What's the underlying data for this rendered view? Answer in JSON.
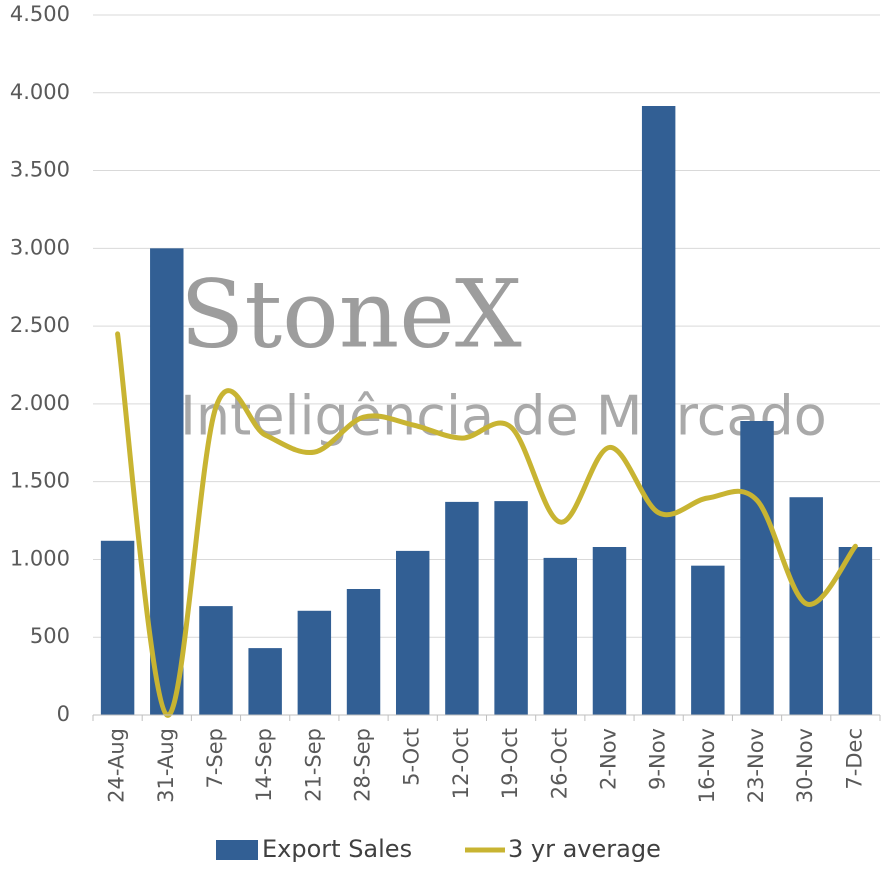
{
  "chart_data": {
    "type": "bar-line",
    "watermark": {
      "brand": "StoneX",
      "tagline": "Inteligência de Mercado"
    },
    "categories": [
      "24-Aug",
      "31-Aug",
      "7-Sep",
      "14-Sep",
      "21-Sep",
      "28-Sep",
      "5-Oct",
      "12-Oct",
      "19-Oct",
      "26-Oct",
      "2-Nov",
      "9-Nov",
      "16-Nov",
      "23-Nov",
      "30-Nov",
      "7-Dec"
    ],
    "series": [
      {
        "name": "Export Sales",
        "type": "bar",
        "color": "#325f94",
        "values": [
          1120,
          3000,
          700,
          430,
          670,
          810,
          1055,
          1370,
          1375,
          1010,
          1080,
          3915,
          960,
          1890,
          1400,
          1080
        ]
      },
      {
        "name": "3 yr average",
        "type": "line",
        "color": "#c8b432",
        "values": [
          2450,
          0,
          1980,
          1800,
          1690,
          1915,
          1865,
          1780,
          1850,
          1240,
          1720,
          1300,
          1395,
          1380,
          715,
          1085
        ]
      }
    ],
    "ylim": [
      0,
      4500
    ],
    "yticks": [
      0,
      500,
      {
        "value": 1000,
        "label": "1.000"
      },
      {
        "value": 1500,
        "label": "1.500"
      },
      {
        "value": 2000,
        "label": "2.000"
      },
      {
        "value": 2500,
        "label": "2.500"
      },
      {
        "value": 3000,
        "label": "3.000"
      },
      {
        "value": 3500,
        "label": "3.500"
      },
      {
        "value": 4000,
        "label": "4.000"
      },
      {
        "value": 4500,
        "label": "4.500"
      }
    ],
    "grid": true,
    "legend": "bottom"
  }
}
